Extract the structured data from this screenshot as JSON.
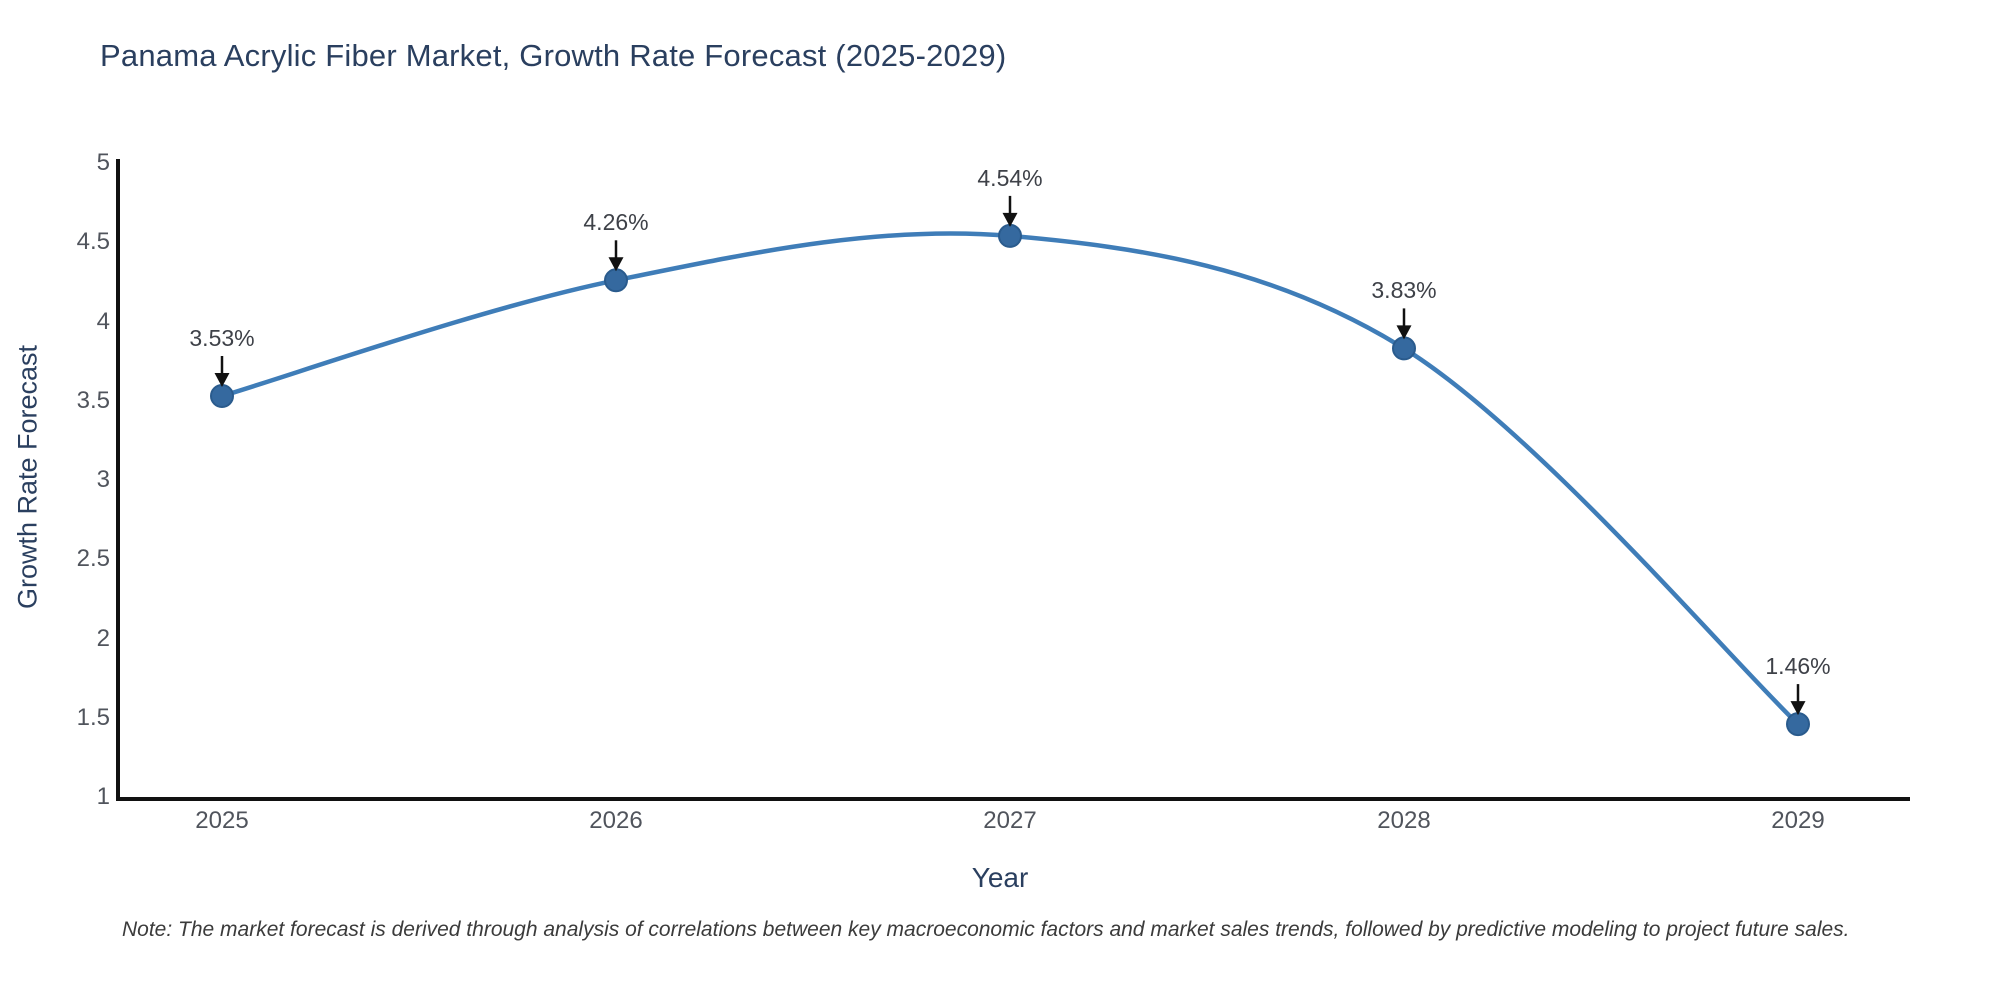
{
  "page": {
    "background": "#ffffff"
  },
  "chart_data": {
    "type": "line",
    "title": "Panama Acrylic Fiber Market, Growth Rate Forecast (2025-2029)",
    "xlabel": "Year",
    "ylabel": "Growth Rate Forecast",
    "categories": [
      "2025",
      "2026",
      "2027",
      "2028",
      "2029"
    ],
    "values": [
      3.53,
      4.26,
      4.54,
      3.83,
      1.46
    ],
    "point_labels": [
      "3.53%",
      "4.26%",
      "4.54%",
      "3.83%",
      "1.46%"
    ],
    "series_name": "Growth Rate Forecast",
    "ylim": [
      1,
      5
    ],
    "yticks": [
      1,
      1.5,
      2,
      2.5,
      3,
      3.5,
      4,
      4.5,
      5
    ],
    "ytick_labels": [
      "1",
      "1.5",
      "2",
      "2.5",
      "3",
      "3.5",
      "4",
      "4.5",
      "5"
    ],
    "line_shape": "spline",
    "grid": false,
    "legend": "none",
    "line_color": "#3f7db8",
    "marker_color": "#35699f",
    "marker_edge_color": "#2a5b8d",
    "annotation_arrow_color": "#111111"
  },
  "footnote": "Note: The market forecast is derived through analysis of correlations between key macroeconomic factors and market sales trends, followed by predictive modeling to project future sales.",
  "colors": {
    "title_text": "#2a3f5f",
    "axis_title_text": "#2a3f5f",
    "tick_text": "#50545c",
    "annotation_text": "#3e4148",
    "axis_line": "#111111",
    "note_text": "#3b3b3b"
  }
}
